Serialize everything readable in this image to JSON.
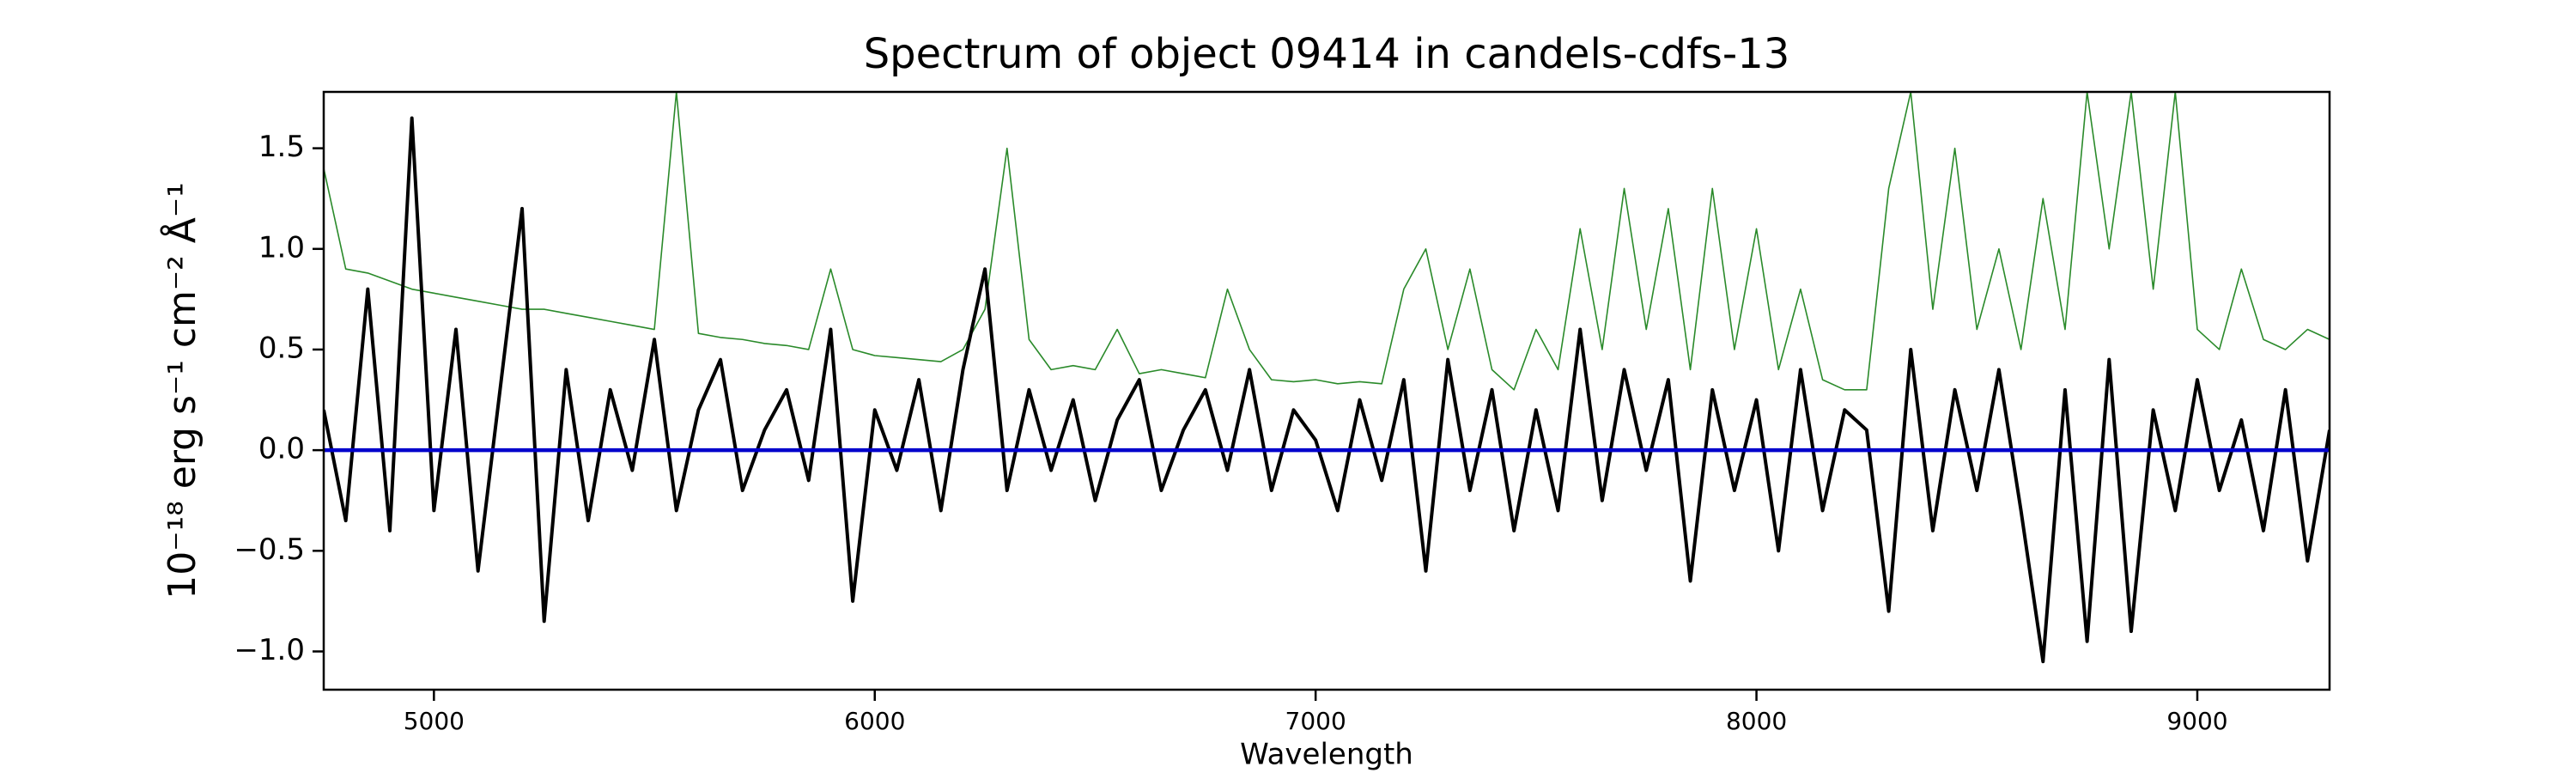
{
  "chart_data": {
    "type": "line",
    "title": "Spectrum of object 09414 in candels-cdfs-13",
    "xlabel": "Wavelength",
    "ylabel": "10⁻¹⁸ erg s⁻¹ cm⁻² Å⁻¹",
    "x": [
      4750,
      4800,
      4850,
      4900,
      4950,
      5000,
      5050,
      5100,
      5150,
      5200,
      5250,
      5300,
      5350,
      5400,
      5450,
      5500,
      5550,
      5600,
      5650,
      5700,
      5750,
      5800,
      5850,
      5900,
      5950,
      6000,
      6050,
      6100,
      6150,
      6200,
      6250,
      6300,
      6350,
      6400,
      6450,
      6500,
      6550,
      6600,
      6650,
      6700,
      6750,
      6800,
      6850,
      6900,
      6950,
      7000,
      7050,
      7100,
      7150,
      7200,
      7250,
      7300,
      7350,
      7400,
      7450,
      7500,
      7550,
      7600,
      7650,
      7700,
      7750,
      7800,
      7850,
      7900,
      7950,
      8000,
      8050,
      8100,
      8150,
      8200,
      8250,
      8300,
      8350,
      8400,
      8450,
      8500,
      8550,
      8600,
      8650,
      8700,
      8750,
      8800,
      8850,
      8900,
      8950,
      9000,
      9050,
      9100,
      9150,
      9200,
      9250,
      9300
    ],
    "series": [
      {
        "color": "#2a8a2a",
        "width": 1.6,
        "values": [
          1.4,
          0.9,
          0.88,
          0.84,
          0.8,
          0.78,
          0.76,
          0.74,
          0.72,
          0.7,
          0.7,
          0.68,
          0.66,
          0.64,
          0.62,
          0.6,
          1.78,
          0.58,
          0.56,
          0.55,
          0.53,
          0.52,
          0.5,
          0.9,
          0.5,
          0.47,
          0.46,
          0.45,
          0.44,
          0.5,
          0.7,
          1.5,
          0.55,
          0.4,
          0.42,
          0.4,
          0.6,
          0.38,
          0.4,
          0.38,
          0.36,
          0.8,
          0.5,
          0.35,
          0.34,
          0.35,
          0.33,
          0.34,
          0.33,
          0.8,
          1.0,
          0.5,
          0.9,
          0.4,
          0.3,
          0.6,
          0.4,
          1.1,
          0.5,
          1.3,
          0.6,
          1.2,
          0.4,
          1.3,
          0.5,
          1.1,
          0.4,
          0.8,
          0.35,
          0.3,
          0.3,
          1.3,
          1.78,
          0.7,
          1.5,
          0.6,
          1.0,
          0.5,
          1.25,
          0.6,
          1.78,
          1.0,
          1.78,
          0.8,
          1.78,
          0.6,
          0.5,
          0.9,
          0.55,
          0.5,
          0.6,
          0.55
        ]
      },
      {
        "color": "#000000",
        "width": 4,
        "values": [
          0.2,
          -0.35,
          0.8,
          -0.4,
          1.65,
          -0.3,
          0.6,
          -0.6,
          0.3,
          1.2,
          -0.85,
          0.4,
          -0.35,
          0.3,
          -0.1,
          0.55,
          -0.3,
          0.2,
          0.45,
          -0.2,
          0.1,
          0.3,
          -0.15,
          0.6,
          -0.75,
          0.2,
          -0.1,
          0.35,
          -0.3,
          0.4,
          0.9,
          -0.2,
          0.3,
          -0.1,
          0.25,
          -0.25,
          0.15,
          0.35,
          -0.2,
          0.1,
          0.3,
          -0.1,
          0.4,
          -0.2,
          0.2,
          0.05,
          -0.3,
          0.25,
          -0.15,
          0.35,
          -0.6,
          0.45,
          -0.2,
          0.3,
          -0.4,
          0.2,
          -0.3,
          0.6,
          -0.25,
          0.4,
          -0.1,
          0.35,
          -0.65,
          0.3,
          -0.2,
          0.25,
          -0.5,
          0.4,
          -0.3,
          0.2,
          0.1,
          -0.8,
          0.5,
          -0.4,
          0.3,
          -0.2,
          0.4,
          -0.3,
          -1.05,
          0.3,
          -0.95,
          0.45,
          -0.9,
          0.2,
          -0.3,
          0.35,
          -0.2,
          0.15,
          -0.4,
          0.3,
          -0.55,
          0.1
        ]
      },
      {
        "color": "#0000cc",
        "width": 4.5,
        "values": [
          0,
          0,
          0,
          0,
          0,
          0,
          0,
          0,
          0,
          0,
          0,
          0,
          0,
          0,
          0,
          0,
          0,
          0,
          0,
          0,
          0,
          0,
          0,
          0,
          0,
          0,
          0,
          0,
          0,
          0,
          0,
          0,
          0,
          0,
          0,
          0,
          0,
          0,
          0,
          0,
          0,
          0,
          0,
          0,
          0,
          0,
          0,
          0,
          0,
          0,
          0,
          0,
          0,
          0,
          0,
          0,
          0,
          0,
          0,
          0,
          0,
          0,
          0,
          0,
          0,
          0,
          0,
          0,
          0,
          0,
          0,
          0,
          0,
          0,
          0,
          0,
          0,
          0,
          0,
          0,
          0,
          0,
          0,
          0,
          0,
          0,
          0,
          0,
          0,
          0,
          0,
          0
        ]
      }
    ],
    "xlim": [
      4750,
      9300
    ],
    "xticks": [
      5000,
      6000,
      7000,
      8000,
      9000
    ],
    "ylim": [
      -1.19,
      1.78
    ],
    "yticks": [
      {
        "value": -1,
        "label": "−1.0"
      },
      {
        "value": -0.5,
        "label": "−0.5"
      },
      {
        "value": 0,
        "label": "0.0"
      },
      {
        "value": 0.5,
        "label": "0.5"
      },
      {
        "value": 1,
        "label": "1.0"
      },
      {
        "value": 1.5,
        "label": "1.5"
      }
    ],
    "grid": false
  }
}
